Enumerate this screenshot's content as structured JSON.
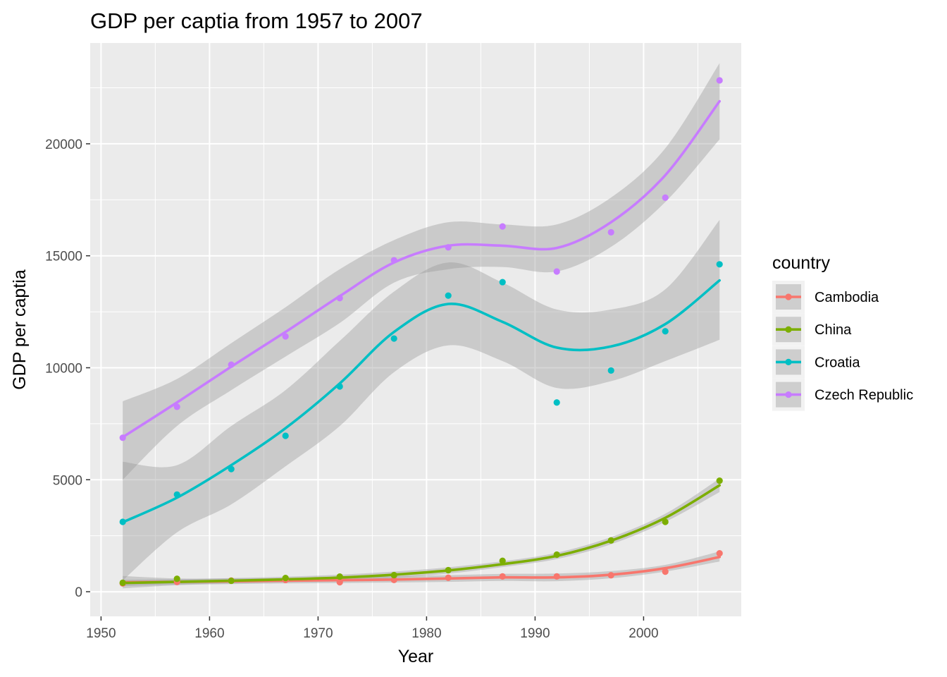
{
  "chart_data": {
    "type": "line",
    "title": "GDP per captia from 1957 to 2007",
    "xlabel": "Year",
    "ylabel": "GDP per captia",
    "xlim": [
      1949,
      2009
    ],
    "ylim": [
      -1100,
      24500
    ],
    "x_major_ticks": [
      1950,
      1960,
      1970,
      1980,
      1990,
      2000
    ],
    "x_minor_ticks": [
      1955,
      1965,
      1975,
      1985,
      1995,
      2005
    ],
    "y_major_ticks": [
      0,
      5000,
      10000,
      15000,
      20000
    ],
    "y_minor_ticks": [
      2500,
      7500,
      12500,
      17500,
      22500
    ],
    "x_tick_labels": [
      "1950",
      "1960",
      "1970",
      "1980",
      "1990",
      "2000"
    ],
    "y_tick_labels": [
      "0",
      "5000",
      "10000",
      "15000",
      "20000"
    ],
    "grid": true,
    "background": "#ebebeb",
    "band_color": "#999999",
    "legend": {
      "title": "country",
      "position": "right"
    },
    "x": [
      1952,
      1957,
      1962,
      1967,
      1972,
      1977,
      1982,
      1987,
      1992,
      1997,
      2002,
      2007
    ],
    "series": [
      {
        "name": "Cambodia",
        "color": "#f8766d",
        "points": [
          368,
          434,
          497,
          523,
          422,
          525,
          625,
          684,
          682,
          735,
          896,
          1714
        ],
        "smooth_x": [
          1952,
          1957,
          1962,
          1967,
          1972,
          1977,
          1982,
          1987,
          1992,
          1997,
          2002,
          2007
        ],
        "smooth_y": [
          420,
          440,
          465,
          490,
          515,
          545,
          590,
          640,
          640,
          760,
          1050,
          1550
        ],
        "band_lower": [
          150,
          290,
          340,
          370,
          390,
          410,
          440,
          480,
          470,
          600,
          900,
          1350
        ],
        "band_upper": [
          700,
          590,
          590,
          610,
          640,
          690,
          740,
          800,
          810,
          920,
          1200,
          1800
        ]
      },
      {
        "name": "China",
        "color": "#7cae00",
        "points": [
          400,
          576,
          488,
          613,
          677,
          741,
          962,
          1379,
          1656,
          2289,
          3119,
          4959
        ],
        "smooth_x": [
          1952,
          1957,
          1962,
          1967,
          1972,
          1977,
          1982,
          1987,
          1992,
          1997,
          2002,
          2007
        ],
        "smooth_y": [
          390,
          440,
          490,
          550,
          630,
          760,
          950,
          1230,
          1600,
          2280,
          3300,
          4750
        ],
        "band_lower": [
          250,
          320,
          370,
          430,
          500,
          620,
          810,
          1100,
          1460,
          2120,
          3120,
          4450
        ],
        "band_upper": [
          530,
          560,
          610,
          670,
          760,
          900,
          1090,
          1360,
          1740,
          2440,
          3480,
          5050
        ]
      },
      {
        "name": "Croatia",
        "color": "#00bfc4",
        "points": [
          3119,
          4338,
          5478,
          6960,
          9165,
          11305,
          13222,
          13823,
          8448,
          9876,
          11628,
          14619
        ],
        "smooth_x": [
          1952,
          1957,
          1962,
          1967,
          1972,
          1977,
          1982,
          1987,
          1992,
          1997,
          2002,
          2007
        ],
        "smooth_y": [
          3100,
          4200,
          5650,
          7300,
          9300,
          11600,
          12850,
          12050,
          10900,
          10950,
          11950,
          13900
        ],
        "band_lower": [
          500,
          2650,
          3900,
          5600,
          7400,
          9800,
          11000,
          10300,
          9100,
          9400,
          10300,
          11250
        ],
        "band_upper": [
          5800,
          5650,
          7400,
          9000,
          11200,
          13400,
          14700,
          13800,
          12600,
          12600,
          13500,
          16600
        ]
      },
      {
        "name": "Czech Republic",
        "color": "#c77cff",
        "points": [
          6876,
          8256,
          10137,
          11399,
          13108,
          14800,
          15377,
          16310,
          14297,
          16049,
          17596,
          22833
        ],
        "smooth_x": [
          1952,
          1957,
          1962,
          1967,
          1972,
          1977,
          1982,
          1987,
          1992,
          1997,
          2002,
          2007
        ],
        "smooth_y": [
          6900,
          8450,
          10050,
          11600,
          13200,
          14700,
          15450,
          15450,
          15350,
          16500,
          18600,
          21900
        ],
        "band_lower": [
          5000,
          7400,
          9000,
          10500,
          12000,
          13800,
          14400,
          14500,
          14300,
          15400,
          17400,
          20200
        ],
        "band_upper": [
          8500,
          9500,
          11100,
          12700,
          14400,
          15700,
          16500,
          16400,
          16400,
          17600,
          19800,
          23600
        ]
      }
    ]
  }
}
